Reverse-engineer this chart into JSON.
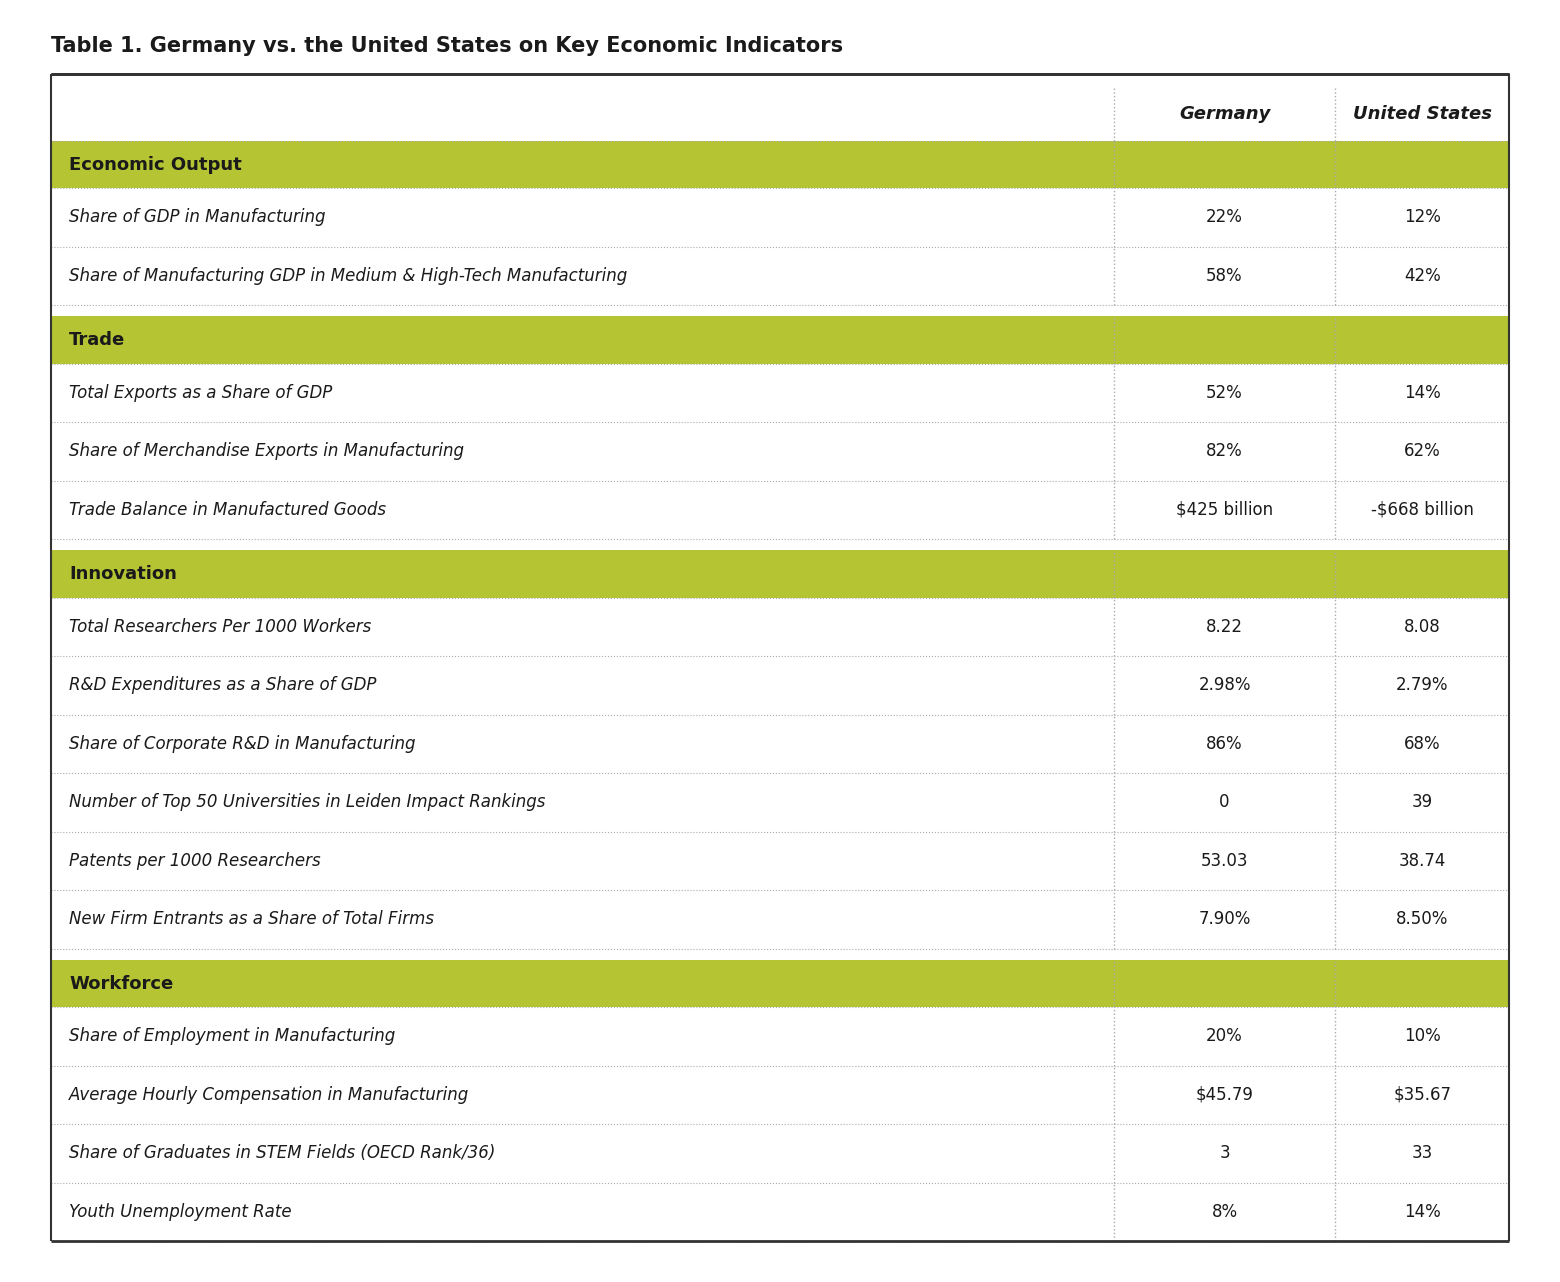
{
  "title": "Table 1. Germany vs. the United States on Key Economic Indicators",
  "col_headers": [
    "",
    "Germany",
    "United States"
  ],
  "sections": [
    {
      "section_name": "Economic Output",
      "rows": [
        [
          "Share of GDP in Manufacturing",
          "22%",
          "12%"
        ],
        [
          "Share of Manufacturing GDP in Medium & High-Tech Manufacturing",
          "58%",
          "42%"
        ]
      ]
    },
    {
      "section_name": "Trade",
      "rows": [
        [
          "Total Exports as a Share of GDP",
          "52%",
          "14%"
        ],
        [
          "Share of Merchandise Exports in Manufacturing",
          "82%",
          "62%"
        ],
        [
          "Trade Balance in Manufactured Goods",
          "$425 billion",
          "-$668 billion"
        ]
      ]
    },
    {
      "section_name": "Innovation",
      "rows": [
        [
          "Total Researchers Per 1000 Workers",
          "8.22",
          "8.08"
        ],
        [
          "R&D Expenditures as a Share of GDP",
          "2.98%",
          "2.79%"
        ],
        [
          "Share of Corporate R&D in Manufacturing",
          "86%",
          "68%"
        ],
        [
          "Number of Top 50 Universities in Leiden Impact Rankings",
          "0",
          "39"
        ],
        [
          "Patents per 1000 Researchers",
          "53.03",
          "38.74"
        ],
        [
          "New Firm Entrants as a Share of Total Firms",
          "7.90%",
          "8.50%"
        ]
      ]
    },
    {
      "section_name": "Workforce",
      "rows": [
        [
          "Share of Employment in Manufacturing",
          "20%",
          "10%"
        ],
        [
          "Average Hourly Compensation in Manufacturing",
          "$45.79",
          "$35.67"
        ],
        [
          "Share of Graduates in STEM Fields (OECD Rank/36)",
          "3",
          "33"
        ],
        [
          "Youth Unemployment Rate",
          "8%",
          "14%"
        ]
      ]
    }
  ],
  "section_header_bg": "#b5c433",
  "section_header_text": "#1a1a1a",
  "header_row_bg": "#ffffff",
  "data_row_bg": "#ffffff",
  "title_color": "#1a1a1a",
  "divider_color_dotted": "#aaaaaa",
  "divider_color_solid": "#333333",
  "col_divider_color": "#aaaaaa",
  "outer_border_color": "#333333",
  "title_fontsize": 15,
  "header_fontsize": 13,
  "section_fontsize": 13,
  "data_fontsize": 12,
  "background_color": "#ffffff"
}
